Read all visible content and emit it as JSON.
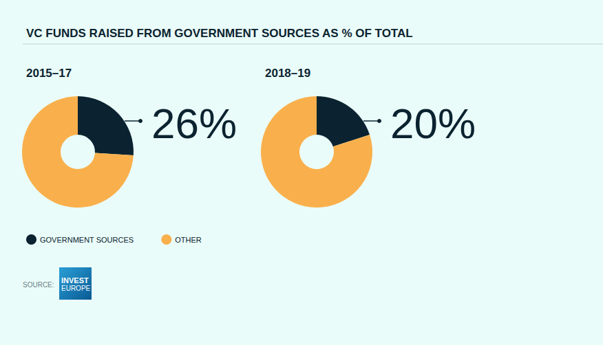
{
  "title": "VC FUNDS RAISED FROM GOVERNMENT SOURCES AS % OF TOTAL",
  "chart_data": [
    {
      "type": "pie",
      "title": "2015–17",
      "categories": [
        "GOVERNMENT SOURCES",
        "OTHER"
      ],
      "values": [
        26,
        74
      ],
      "value_labels": [
        "26%",
        null
      ],
      "colors": [
        "#0b2330",
        "#f9b04c"
      ],
      "legend": "bottom"
    },
    {
      "type": "pie",
      "title": "2018–19",
      "categories": [
        "GOVERNMENT SOURCES",
        "OTHER"
      ],
      "values": [
        20,
        80
      ],
      "value_labels": [
        "20%",
        null
      ],
      "colors": [
        "#0b2330",
        "#f9b04c"
      ],
      "legend": "bottom"
    }
  ],
  "source": {
    "label": "SOURCE:",
    "logo": [
      "INVEST",
      "EUROPE"
    ]
  }
}
